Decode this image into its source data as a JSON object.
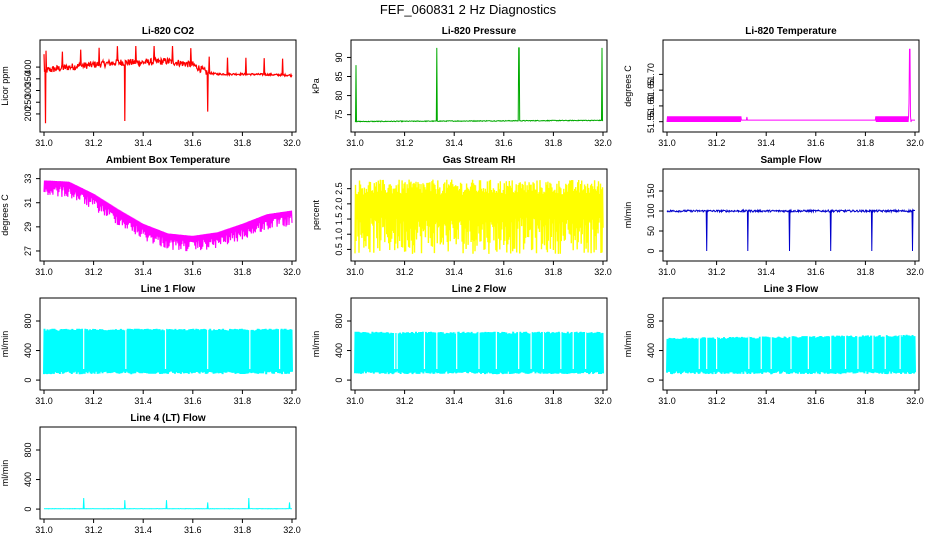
{
  "figure": {
    "title": "FEF_060831  2 Hz Diagnostics"
  },
  "chart_data": [
    {
      "type": "line",
      "title": "Li-820 CO2",
      "ylabel": "Licor ppm",
      "color": "#ff0000",
      "xlim": [
        31.0,
        32.0
      ],
      "ylim": [
        140,
        490
      ],
      "xticks": [
        "31.0",
        "31.2",
        "31.4",
        "31.6",
        "31.8",
        "32.0"
      ],
      "yticks": [
        "200",
        "250",
        "300",
        "350",
        "400"
      ],
      "shape": "co2",
      "series": [
        {
          "name": "CO2",
          "x": [
            31.0,
            31.1,
            31.2,
            31.3,
            31.4,
            31.5,
            31.6,
            31.66,
            31.7,
            31.8,
            31.9,
            32.0
          ],
          "y": [
            385,
            400,
            410,
            420,
            420,
            425,
            410,
            375,
            370,
            370,
            368,
            365
          ]
        }
      ]
    },
    {
      "type": "line",
      "title": "Li-820 Pressure",
      "ylabel": "kPa",
      "color": "#00aa00",
      "xlim": [
        31.0,
        32.0
      ],
      "ylim": [
        71.5,
        93
      ],
      "xticks": [
        "31.0",
        "31.2",
        "31.4",
        "31.6",
        "31.8",
        "32.0"
      ],
      "yticks": [
        "75",
        "80",
        "85",
        "90"
      ],
      "shape": "pressure",
      "series": [
        {
          "name": "Pressure",
          "x": [
            31.0,
            31.33,
            31.66,
            32.0
          ],
          "y": [
            73.2,
            73.3,
            73.4,
            73.5
          ]
        }
      ]
    },
    {
      "type": "line",
      "title": "Li-820 Temperature",
      "ylabel": "degrees C",
      "color": "#ff00ff",
      "xlim": [
        31.0,
        32.0
      ],
      "ylim": [
        51.53,
        51.79
      ],
      "xticks": [
        "31.0",
        "31.2",
        "31.4",
        "31.6",
        "31.8",
        "32.0"
      ],
      "yticks": [
        "51.55",
        "51.60",
        "51.65",
        "51.70"
      ],
      "shape": "temp",
      "series": [
        {
          "name": "Temperature",
          "x": [
            31.0,
            31.3,
            31.32,
            31.8,
            31.85,
            31.98,
            32.0
          ],
          "y": [
            51.56,
            51.56,
            51.555,
            51.555,
            51.56,
            51.78,
            51.56
          ]
        }
      ]
    },
    {
      "type": "line",
      "title": "Ambient Box Temperature",
      "ylabel": "degrees C",
      "color": "#ff00ff",
      "xlim": [
        31.0,
        32.0
      ],
      "ylim": [
        26.5,
        33.3
      ],
      "xticks": [
        "31.0",
        "31.2",
        "31.4",
        "31.6",
        "31.8",
        "32.0"
      ],
      "yticks": [
        "27",
        "29",
        "31",
        "33"
      ],
      "shape": "ambient",
      "series": [
        {
          "name": "Ambient",
          "x": [
            31.0,
            31.1,
            31.2,
            31.3,
            31.4,
            31.5,
            31.6,
            31.7,
            31.8,
            31.9,
            32.0
          ],
          "y": [
            32.6,
            32.5,
            31.5,
            30.2,
            29.0,
            28.2,
            28.0,
            28.3,
            29.0,
            29.8,
            30.1
          ]
        }
      ]
    },
    {
      "type": "line",
      "title": "Gas Stream RH",
      "ylabel": "percent",
      "color": "#ffff00",
      "xlim": [
        31.0,
        32.0
      ],
      "ylim": [
        0.25,
        2.95
      ],
      "xticks": [
        "31.0",
        "31.2",
        "31.4",
        "31.6",
        "31.8",
        "32.0"
      ],
      "yticks": [
        "0.5",
        "1.0",
        "1.5",
        "2.0",
        "2.5"
      ],
      "shape": "rh",
      "series": [
        {
          "name": "RH",
          "x": [
            31.0,
            32.0
          ],
          "y": [
            1.6,
            1.6
          ]
        }
      ]
    },
    {
      "type": "line",
      "title": "Sample Flow",
      "ylabel": "ml/min",
      "color": "#0000cc",
      "xlim": [
        31.0,
        32.0
      ],
      "ylim": [
        -15,
        190
      ],
      "xticks": [
        "31.0",
        "31.2",
        "31.4",
        "31.6",
        "31.8",
        "32.0"
      ],
      "yticks": [
        "0",
        "50",
        "100",
        "150"
      ],
      "shape": "sample",
      "series": [
        {
          "name": "Sample",
          "x": [
            31.0,
            31.16,
            31.33,
            31.5,
            31.66,
            31.83,
            32.0
          ],
          "y": [
            100,
            100,
            100,
            100,
            100,
            100,
            100
          ]
        }
      ]
    },
    {
      "type": "line",
      "title": "Line 1 Flow",
      "ylabel": "ml/min",
      "color": "#00ffff",
      "xlim": [
        31.0,
        32.0
      ],
      "ylim": [
        -80,
        1030
      ],
      "xticks": [
        "31.0",
        "31.2",
        "31.4",
        "31.6",
        "31.8",
        "32.0"
      ],
      "yticks": [
        "0",
        "400",
        "800"
      ],
      "shape": "line1",
      "series": [
        {
          "name": "Line 1",
          "x": [
            31.0,
            32.0
          ],
          "y": [
            680,
            680
          ]
        }
      ]
    },
    {
      "type": "line",
      "title": "Line 2 Flow",
      "ylabel": "ml/min",
      "color": "#00ffff",
      "xlim": [
        31.0,
        32.0
      ],
      "ylim": [
        -80,
        1030
      ],
      "xticks": [
        "31.0",
        "31.2",
        "31.4",
        "31.6",
        "31.8",
        "32.0"
      ],
      "yticks": [
        "0",
        "400",
        "800"
      ],
      "shape": "line2",
      "series": [
        {
          "name": "Line 2",
          "x": [
            31.0,
            32.0
          ],
          "y": [
            640,
            640
          ]
        }
      ]
    },
    {
      "type": "line",
      "title": "Line 3 Flow",
      "ylabel": "ml/min",
      "color": "#00ffff",
      "xlim": [
        31.0,
        32.0
      ],
      "ylim": [
        -80,
        1030
      ],
      "xticks": [
        "31.0",
        "31.2",
        "31.4",
        "31.6",
        "31.8",
        "32.0"
      ],
      "yticks": [
        "0",
        "400",
        "800"
      ],
      "shape": "line3",
      "series": [
        {
          "name": "Line 3",
          "x": [
            31.0,
            32.0
          ],
          "y": [
            560,
            600
          ]
        }
      ]
    },
    {
      "type": "line",
      "title": "Line 4 (LT) Flow",
      "ylabel": "ml/min",
      "color": "#00ffff",
      "xlim": [
        31.0,
        32.0
      ],
      "ylim": [
        -80,
        1030
      ],
      "xticks": [
        "31.0",
        "31.2",
        "31.4",
        "31.6",
        "31.8",
        "32.0"
      ],
      "yticks": [
        "0",
        "400",
        "800"
      ],
      "shape": "line4",
      "series": [
        {
          "name": "Line 4 (LT)",
          "x": [
            31.0,
            31.16,
            31.33,
            31.5,
            31.66,
            31.83,
            32.0
          ],
          "y": [
            5,
            5,
            5,
            5,
            5,
            5,
            5
          ]
        }
      ]
    }
  ]
}
